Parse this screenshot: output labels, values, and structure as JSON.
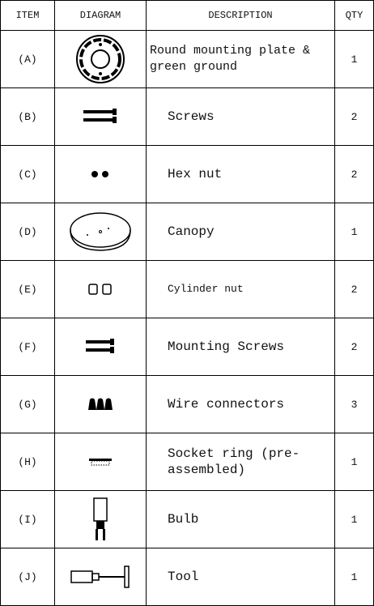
{
  "table": {
    "header": [
      "ITEM",
      "DIAGRAM",
      "DESCRIPTION",
      "QTY"
    ],
    "rows": [
      [
        "(A)",
        "Round mounting plate & green ground",
        1
      ],
      [
        "(B)",
        "Screws",
        2
      ],
      [
        "(C)",
        "Hex nut",
        2
      ],
      [
        "(D)",
        "Canopy",
        1
      ],
      [
        "(E)",
        "Cylinder nut",
        2
      ],
      [
        "(F)",
        "Mounting Screws",
        2
      ],
      [
        "(G)",
        "Wire connectors",
        3
      ],
      [
        "(H)",
        "Socket ring (pre-assembled)",
        1
      ],
      [
        "(I)",
        "Bulb",
        1
      ],
      [
        "(J)",
        "Tool",
        1
      ]
    ]
  }
}
